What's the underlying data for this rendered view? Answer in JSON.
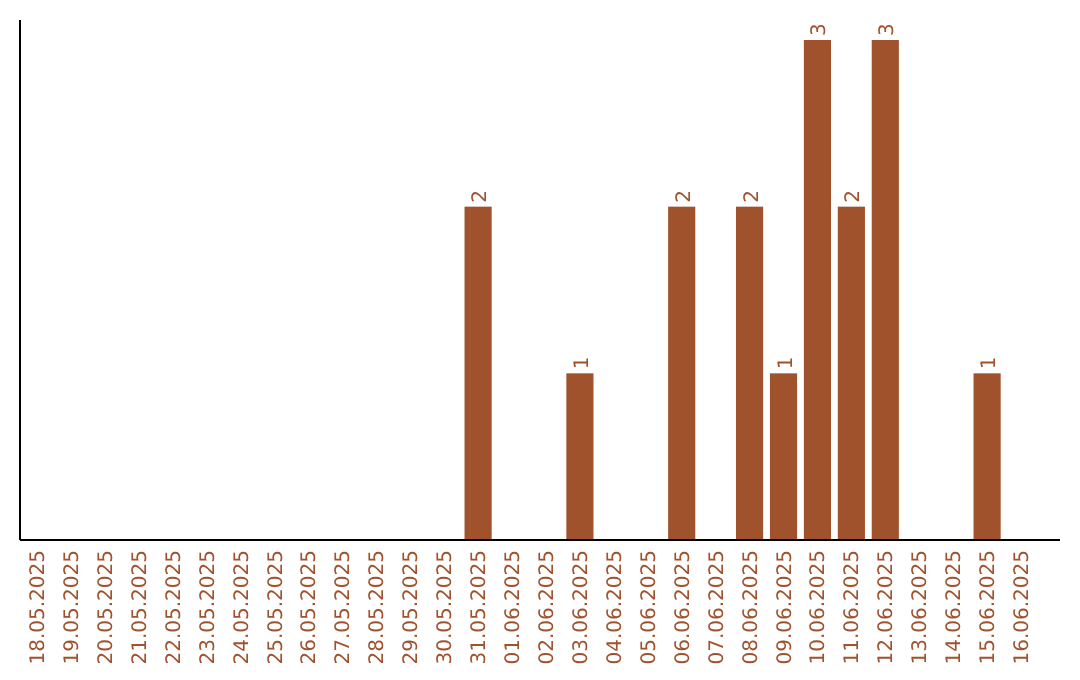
{
  "chart_data": {
    "type": "bar",
    "categories": [
      "18.05.2025",
      "19.05.2025",
      "20.05.2025",
      "21.05.2025",
      "22.05.2025",
      "23.05.2025",
      "24.05.2025",
      "25.05.2025",
      "26.05.2025",
      "27.05.2025",
      "28.05.2025",
      "29.05.2025",
      "30.05.2025",
      "31.05.2025",
      "01.06.2025",
      "02.06.2025",
      "03.06.2025",
      "04.06.2025",
      "05.06.2025",
      "06.06.2025",
      "07.06.2025",
      "08.06.2025",
      "09.06.2025",
      "10.06.2025",
      "11.06.2025",
      "12.06.2025",
      "13.06.2025",
      "14.06.2025",
      "15.06.2025",
      "16.06.2025"
    ],
    "values": [
      null,
      null,
      null,
      null,
      null,
      null,
      null,
      null,
      null,
      null,
      null,
      null,
      null,
      2,
      null,
      null,
      1,
      null,
      null,
      2,
      null,
      2,
      1,
      3,
      2,
      3,
      null,
      null,
      1,
      null
    ],
    "data_labels": true,
    "color": "#a0522d",
    "ylim": [
      0,
      3
    ],
    "tick_labels": "x"
  }
}
